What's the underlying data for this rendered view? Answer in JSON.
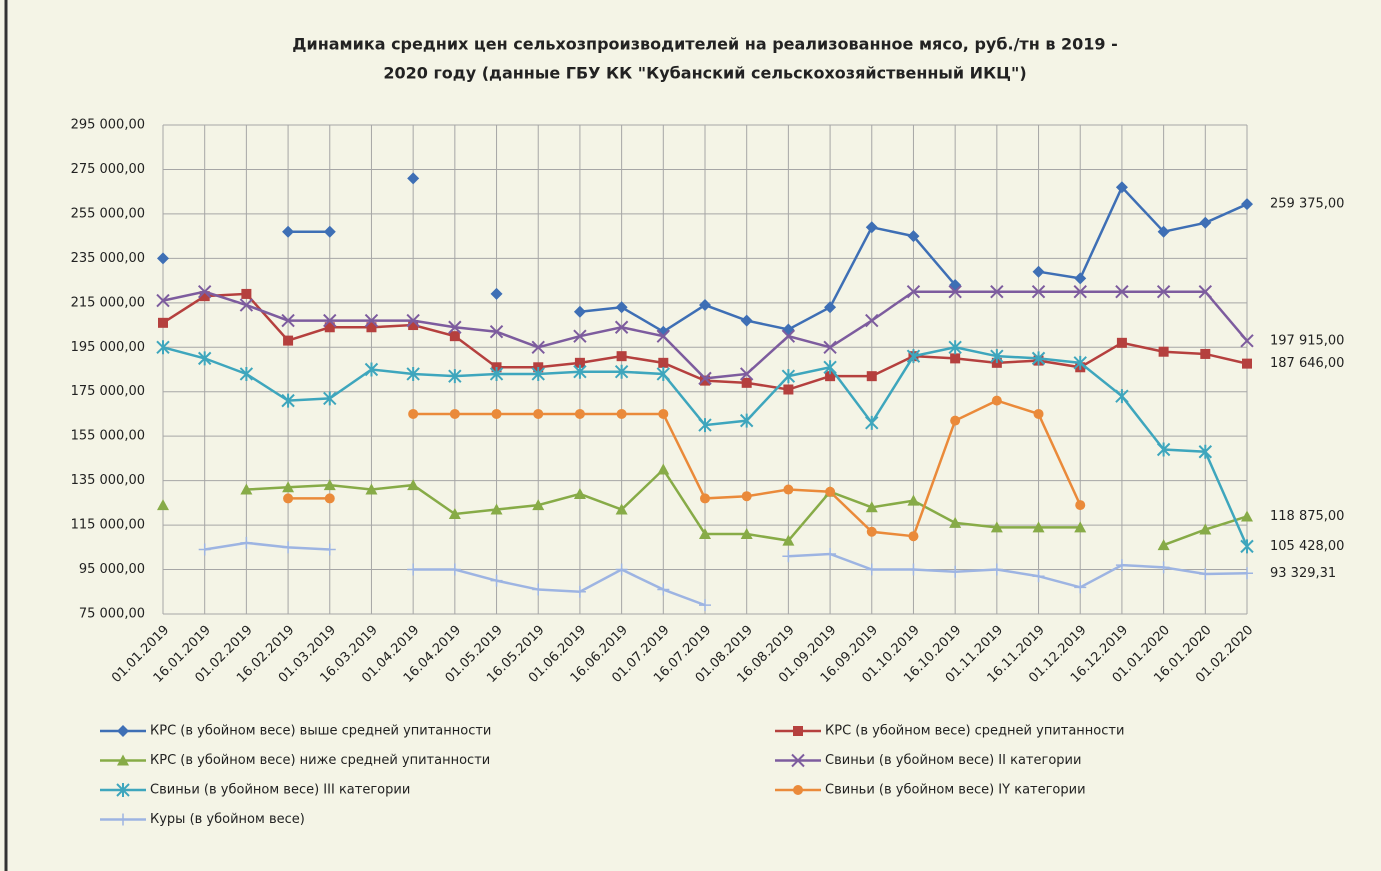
{
  "chart_data": {
    "type": "line",
    "title": [
      "Динамика средних цен сельхозпроизводителей на реализованное мясо, руб./тн в  2019 -",
      "2020 году (данные ГБУ КК \"Кубанский сельскохозяйственный ИКЦ\")"
    ],
    "categories": [
      "01.01.2019",
      "16.01.2019",
      "01.02.2019",
      "16.02.2019",
      "01.03.2019",
      "16.03.2019",
      "01.04.2019",
      "16.04.2019",
      "01.05.2019",
      "16.05.2019",
      "01.06.2019",
      "16.06.2019",
      "01.07.2019",
      "16.07.2019",
      "01.08.2019",
      "16.08.2019",
      "01.09.2019",
      "16.09.2019",
      "01.10.2019",
      "16.10.2019",
      "01.11.2019",
      "16.11.2019",
      "01.12.2019",
      "16.12.2019",
      "01.01.2020",
      "16.01.2020",
      "01.02.2020"
    ],
    "ylim": [
      75000,
      295000
    ],
    "yticks": [
      {
        "value": 75000,
        "label": "75 000,00"
      },
      {
        "value": 95000,
        "label": "95 000,00"
      },
      {
        "value": 115000,
        "label": "115 000,00"
      },
      {
        "value": 135000,
        "label": "135 000,00"
      },
      {
        "value": 155000,
        "label": "155 000,00"
      },
      {
        "value": 175000,
        "label": "175 000,00"
      },
      {
        "value": 195000,
        "label": "195 000,00"
      },
      {
        "value": 215000,
        "label": "215 000,00"
      },
      {
        "value": 235000,
        "label": "235 000,00"
      },
      {
        "value": 255000,
        "label": "255 000,00"
      },
      {
        "value": 275000,
        "label": "275 000,00"
      },
      {
        "value": 295000,
        "label": "295 000,00"
      }
    ],
    "grid": true,
    "series": [
      {
        "name": "КРС (в убойном весе) выше средней упитанности",
        "color": "#3e6fb5",
        "marker": "diamond",
        "values": [
          235000,
          null,
          null,
          247000,
          247000,
          null,
          271000,
          null,
          219000,
          null,
          211000,
          213000,
          202000,
          214000,
          207000,
          203000,
          213000,
          249000,
          245000,
          223000,
          null,
          229000,
          226000,
          267000,
          247000,
          251000,
          259375
        ],
        "value_labels": [
          null,
          null,
          null,
          null,
          null,
          null,
          null,
          null,
          null,
          null,
          null,
          null,
          null,
          null,
          null,
          null,
          null,
          null,
          null,
          null,
          null,
          null,
          null,
          null,
          null,
          null,
          "259 375,00"
        ]
      },
      {
        "name": "КРС (в убойном весе) средней упитанности",
        "color": "#b5403e",
        "marker": "square",
        "values": [
          206000,
          218000,
          219000,
          198000,
          204000,
          204000,
          205000,
          200000,
          186000,
          186000,
          188000,
          191000,
          188000,
          180000,
          179000,
          176000,
          182000,
          182000,
          191000,
          190000,
          188000,
          189000,
          186000,
          197000,
          193000,
          192000,
          187646
        ],
        "value_labels": [
          null,
          null,
          null,
          null,
          null,
          null,
          null,
          null,
          null,
          null,
          null,
          null,
          null,
          null,
          null,
          null,
          null,
          null,
          null,
          null,
          null,
          null,
          null,
          null,
          null,
          null,
          "187 646,00"
        ]
      },
      {
        "name": "КРС (в убойном весе) ниже средней упитанности",
        "color": "#87ab47",
        "marker": "triangle",
        "values": [
          124000,
          null,
          131000,
          132000,
          133000,
          131000,
          133000,
          120000,
          122000,
          124000,
          129000,
          122000,
          140000,
          111000,
          111000,
          108000,
          130000,
          123000,
          126000,
          116000,
          114000,
          114000,
          114000,
          null,
          106000,
          113000,
          118875
        ],
        "value_labels": [
          null,
          null,
          null,
          null,
          null,
          null,
          null,
          null,
          null,
          null,
          null,
          null,
          null,
          null,
          null,
          null,
          null,
          null,
          null,
          null,
          null,
          null,
          null,
          null,
          null,
          null,
          "118 875,00"
        ]
      },
      {
        "name": "Свиньи (в убойном весе) II категории",
        "color": "#7d5c9e",
        "marker": "x",
        "values": [
          216000,
          220000,
          214000,
          207000,
          207000,
          207000,
          207000,
          204000,
          202000,
          195000,
          200000,
          204000,
          200000,
          181000,
          183000,
          200000,
          195000,
          207000,
          220000,
          220000,
          220000,
          220000,
          220000,
          220000,
          220000,
          220000,
          197915
        ],
        "value_labels": [
          null,
          null,
          null,
          null,
          null,
          null,
          null,
          null,
          null,
          null,
          null,
          null,
          null,
          null,
          null,
          null,
          null,
          null,
          null,
          null,
          null,
          null,
          null,
          null,
          null,
          null,
          "197 915,00"
        ]
      },
      {
        "name": "Свиньи (в убойном весе) III категории",
        "color": "#3ea6bd",
        "marker": "star",
        "values": [
          195000,
          190000,
          183000,
          171000,
          172000,
          185000,
          183000,
          182000,
          183000,
          183000,
          184000,
          184000,
          183000,
          160000,
          162000,
          182000,
          186000,
          161000,
          191000,
          195000,
          191000,
          190000,
          188000,
          173000,
          149000,
          148000,
          105428
        ],
        "value_labels": [
          null,
          null,
          null,
          null,
          null,
          null,
          null,
          null,
          null,
          null,
          null,
          null,
          null,
          null,
          null,
          null,
          null,
          null,
          null,
          null,
          null,
          null,
          null,
          null,
          null,
          null,
          "105 428,00"
        ]
      },
      {
        "name": "Свиньи (в убойном весе) IY категории",
        "color": "#ea8a3a",
        "marker": "circle",
        "values": [
          null,
          null,
          null,
          127000,
          127000,
          null,
          165000,
          165000,
          165000,
          165000,
          165000,
          165000,
          165000,
          127000,
          128000,
          131000,
          130000,
          112000,
          110000,
          162000,
          171000,
          165000,
          124000,
          null,
          null,
          null,
          null
        ]
      },
      {
        "name": "Куры (в убойном весе)",
        "color": "#9db4e2",
        "marker": "plus",
        "values": [
          null,
          104000,
          107000,
          105000,
          104000,
          null,
          95000,
          95000,
          90000,
          86000,
          85000,
          95000,
          86000,
          79000,
          null,
          101000,
          102000,
          95000,
          95000,
          94000,
          95000,
          92000,
          87000,
          97000,
          96000,
          93000,
          93329.31
        ],
        "value_labels": [
          null,
          null,
          null,
          null,
          null,
          null,
          null,
          null,
          null,
          null,
          null,
          null,
          null,
          null,
          null,
          null,
          null,
          null,
          null,
          null,
          null,
          null,
          null,
          null,
          null,
          null,
          "93 329,31"
        ]
      }
    ]
  }
}
